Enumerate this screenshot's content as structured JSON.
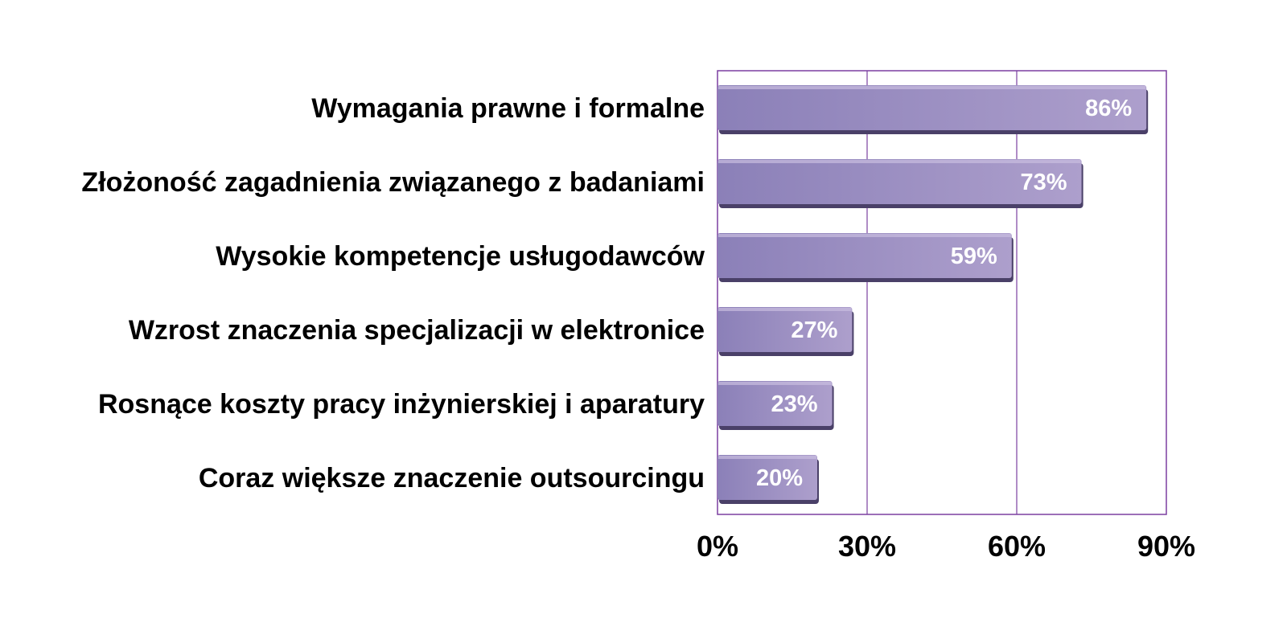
{
  "chart_data": {
    "type": "bar",
    "orientation": "horizontal",
    "categories": [
      "Wymagania prawne i formalne",
      "Złożoność zagadnienia związanego z badaniami",
      "Wysokie kompetencje usługodawców",
      "Wzrost znaczenia specjalizacji w elektronice",
      "Rosnące koszty pracy inżynierskiej i aparatury",
      "Coraz większe znaczenie outsourcingu"
    ],
    "values": [
      86,
      73,
      59,
      27,
      23,
      20
    ],
    "data_labels": [
      "86%",
      "73%",
      "59%",
      "27%",
      "23%",
      "20%"
    ],
    "xlim": [
      0,
      90
    ],
    "xticks": [
      0,
      30,
      60,
      90
    ],
    "xtick_labels": [
      "0%",
      "30%",
      "60%",
      "90%"
    ],
    "title": "",
    "xlabel": "",
    "ylabel": "",
    "grid": true,
    "legend": "none",
    "colors": {
      "bar_light": "#ad9fcc",
      "bar_dark": "#8b80b8",
      "bar_shadow": "#4a4068",
      "plot_border": "#7b3fa0",
      "gridline": "#7b3fa0"
    }
  }
}
